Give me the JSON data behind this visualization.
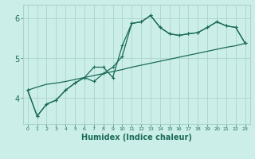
{
  "xlabel": "Humidex (Indice chaleur)",
  "background_color": "#cceee8",
  "grid_color": "#aad4cc",
  "line_color": "#1a6b5a",
  "x_values": [
    0,
    1,
    2,
    3,
    4,
    5,
    6,
    7,
    8,
    9,
    10,
    11,
    12,
    13,
    14,
    15,
    16,
    17,
    18,
    19,
    20,
    21,
    22,
    23
  ],
  "line1": [
    4.2,
    3.55,
    3.85,
    3.95,
    4.2,
    4.38,
    4.52,
    4.42,
    4.62,
    4.78,
    5.05,
    5.88,
    5.92,
    6.08,
    5.78,
    5.62,
    5.58,
    5.62,
    5.65,
    5.78,
    5.92,
    5.82,
    5.78,
    5.38
  ],
  "line2": [
    4.2,
    3.55,
    3.85,
    3.95,
    4.2,
    4.38,
    4.52,
    4.78,
    4.78,
    4.52,
    5.32,
    5.88,
    5.92,
    6.08,
    5.78,
    5.62,
    5.58,
    5.62,
    5.65,
    5.78,
    5.92,
    5.82,
    5.78,
    5.38
  ],
  "line3": [
    4.2,
    4.28,
    4.35,
    4.38,
    4.42,
    4.47,
    4.52,
    4.57,
    4.62,
    4.67,
    4.72,
    4.78,
    4.83,
    4.88,
    4.93,
    4.98,
    5.03,
    5.08,
    5.13,
    5.18,
    5.23,
    5.28,
    5.32,
    5.38
  ],
  "ylim": [
    3.35,
    6.35
  ],
  "yticks": [
    4,
    5,
    6
  ],
  "xlim": [
    -0.5,
    23.5
  ],
  "ytick_fontsize": 7,
  "xtick_fontsize": 4.5,
  "xlabel_fontsize": 7
}
